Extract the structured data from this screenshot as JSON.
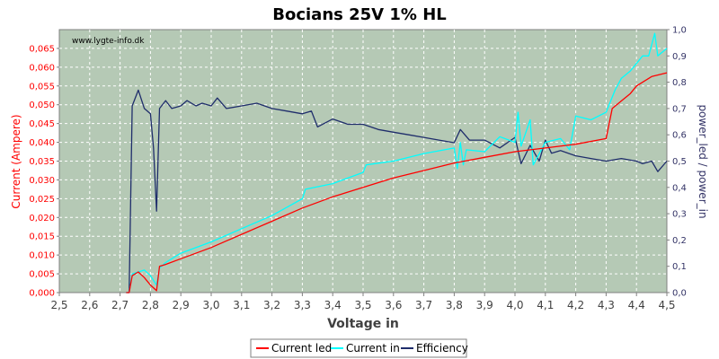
{
  "chart_data": {
    "type": "line",
    "title": "Bocians 25V 1% HL",
    "watermark": "www.lygte-info.dk",
    "xlabel": "Voltage in",
    "ylabel_left": "Current (Ampere)",
    "ylabel_right": "power_led / power_in",
    "xlim": [
      2.5,
      4.5
    ],
    "ylim_left": [
      0,
      0.07
    ],
    "ylim_right": [
      0,
      1.0
    ],
    "grid": true,
    "legend_position": "bottom",
    "x_ticks": [
      "2,5",
      "2,6",
      "2,7",
      "2,8",
      "2,9",
      "3,0",
      "3,1",
      "3,2",
      "3,3",
      "3,4",
      "3,5",
      "3,6",
      "3,7",
      "3,8",
      "3,9",
      "4,0",
      "4,1",
      "4,2",
      "4,3",
      "4,4",
      "4,5"
    ],
    "y_left_ticks": [
      "0,000",
      "0,005",
      "0,010",
      "0,015",
      "0,020",
      "0,025",
      "0,030",
      "0,035",
      "0,040",
      "0,045",
      "0,050",
      "0,055",
      "0,060",
      "0,065"
    ],
    "y_right_ticks": [
      "0,0",
      "0,1",
      "0,2",
      "0,3",
      "0,4",
      "0,5",
      "0,6",
      "0,7",
      "0,8",
      "0,9",
      "1,0"
    ],
    "series": [
      {
        "name": "Current led",
        "color": "#ff0000",
        "axis": "left",
        "x": [
          2.72,
          2.73,
          2.74,
          2.76,
          2.78,
          2.8,
          2.82,
          2.83,
          2.85,
          2.9,
          3.0,
          3.1,
          3.2,
          3.3,
          3.4,
          3.5,
          3.6,
          3.7,
          3.8,
          3.9,
          4.0,
          4.1,
          4.2,
          4.3,
          4.31,
          4.32,
          4.35,
          4.38,
          4.4,
          4.42,
          4.45,
          4.5
        ],
        "y": [
          0.0,
          0.0,
          0.0045,
          0.0055,
          0.004,
          0.002,
          0.0005,
          0.007,
          0.0075,
          0.009,
          0.012,
          0.0155,
          0.019,
          0.0225,
          0.0255,
          0.028,
          0.0305,
          0.0325,
          0.0345,
          0.036,
          0.0375,
          0.0385,
          0.0395,
          0.041,
          0.045,
          0.049,
          0.051,
          0.053,
          0.055,
          0.056,
          0.0575,
          0.0585
        ]
      },
      {
        "name": "Current in",
        "color": "#00ffff",
        "axis": "left",
        "x": [
          2.72,
          2.73,
          2.74,
          2.76,
          2.78,
          2.8,
          2.82,
          2.83,
          2.85,
          2.9,
          3.0,
          3.1,
          3.2,
          3.3,
          3.31,
          3.4,
          3.5,
          3.51,
          3.6,
          3.7,
          3.8,
          3.81,
          3.82,
          3.83,
          3.84,
          3.9,
          3.95,
          4.0,
          4.01,
          4.02,
          4.05,
          4.06,
          4.1,
          4.15,
          4.18,
          4.2,
          4.25,
          4.3,
          4.33,
          4.35,
          4.38,
          4.4,
          4.42,
          4.44,
          4.46,
          4.47,
          4.5
        ],
        "y": [
          0.0,
          0.0,
          0.005,
          0.0055,
          0.006,
          0.0045,
          0.002,
          0.0065,
          0.008,
          0.0105,
          0.0135,
          0.017,
          0.0205,
          0.025,
          0.0275,
          0.029,
          0.032,
          0.034,
          0.035,
          0.037,
          0.0385,
          0.033,
          0.04,
          0.034,
          0.038,
          0.0375,
          0.0415,
          0.04,
          0.048,
          0.039,
          0.046,
          0.034,
          0.04,
          0.041,
          0.038,
          0.047,
          0.046,
          0.048,
          0.054,
          0.057,
          0.059,
          0.061,
          0.063,
          0.063,
          0.069,
          0.063,
          0.065
        ]
      },
      {
        "name": "Efficiency",
        "color": "#1f2d6b",
        "axis": "right",
        "x": [
          2.72,
          2.73,
          2.74,
          2.76,
          2.78,
          2.8,
          2.81,
          2.82,
          2.83,
          2.85,
          2.87,
          2.9,
          2.92,
          2.95,
          2.97,
          3.0,
          3.02,
          3.05,
          3.1,
          3.15,
          3.2,
          3.25,
          3.3,
          3.33,
          3.35,
          3.4,
          3.45,
          3.5,
          3.55,
          3.6,
          3.65,
          3.7,
          3.75,
          3.8,
          3.82,
          3.85,
          3.9,
          3.95,
          4.0,
          4.02,
          4.05,
          4.08,
          4.1,
          4.12,
          4.15,
          4.2,
          4.25,
          4.3,
          4.35,
          4.4,
          4.42,
          4.45,
          4.47,
          4.5
        ],
        "y": [
          0.0,
          0.0,
          0.71,
          0.77,
          0.7,
          0.68,
          0.55,
          0.31,
          0.7,
          0.73,
          0.7,
          0.71,
          0.73,
          0.71,
          0.72,
          0.71,
          0.74,
          0.7,
          0.71,
          0.72,
          0.7,
          0.69,
          0.68,
          0.69,
          0.63,
          0.66,
          0.64,
          0.64,
          0.62,
          0.61,
          0.6,
          0.59,
          0.58,
          0.57,
          0.62,
          0.58,
          0.58,
          0.55,
          0.59,
          0.49,
          0.56,
          0.5,
          0.58,
          0.53,
          0.54,
          0.52,
          0.51,
          0.5,
          0.51,
          0.5,
          0.49,
          0.5,
          0.46,
          0.5
        ]
      }
    ]
  }
}
